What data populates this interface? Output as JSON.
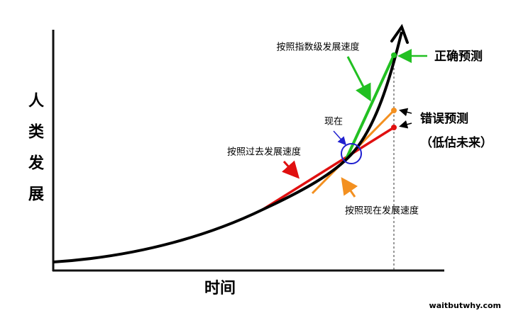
{
  "y_axis_label": "人类发展",
  "x_axis_label": "时间",
  "annotations": {
    "exponential": "按照指数级发展速度",
    "correct": "正确预测",
    "now": "现在",
    "wrong": "错误预测",
    "underestimate": "（低估未来）",
    "past_rate": "按照过去发展速度",
    "current_rate": "按照现在发展速度"
  },
  "watermark": "waitbutwhy.com"
}
